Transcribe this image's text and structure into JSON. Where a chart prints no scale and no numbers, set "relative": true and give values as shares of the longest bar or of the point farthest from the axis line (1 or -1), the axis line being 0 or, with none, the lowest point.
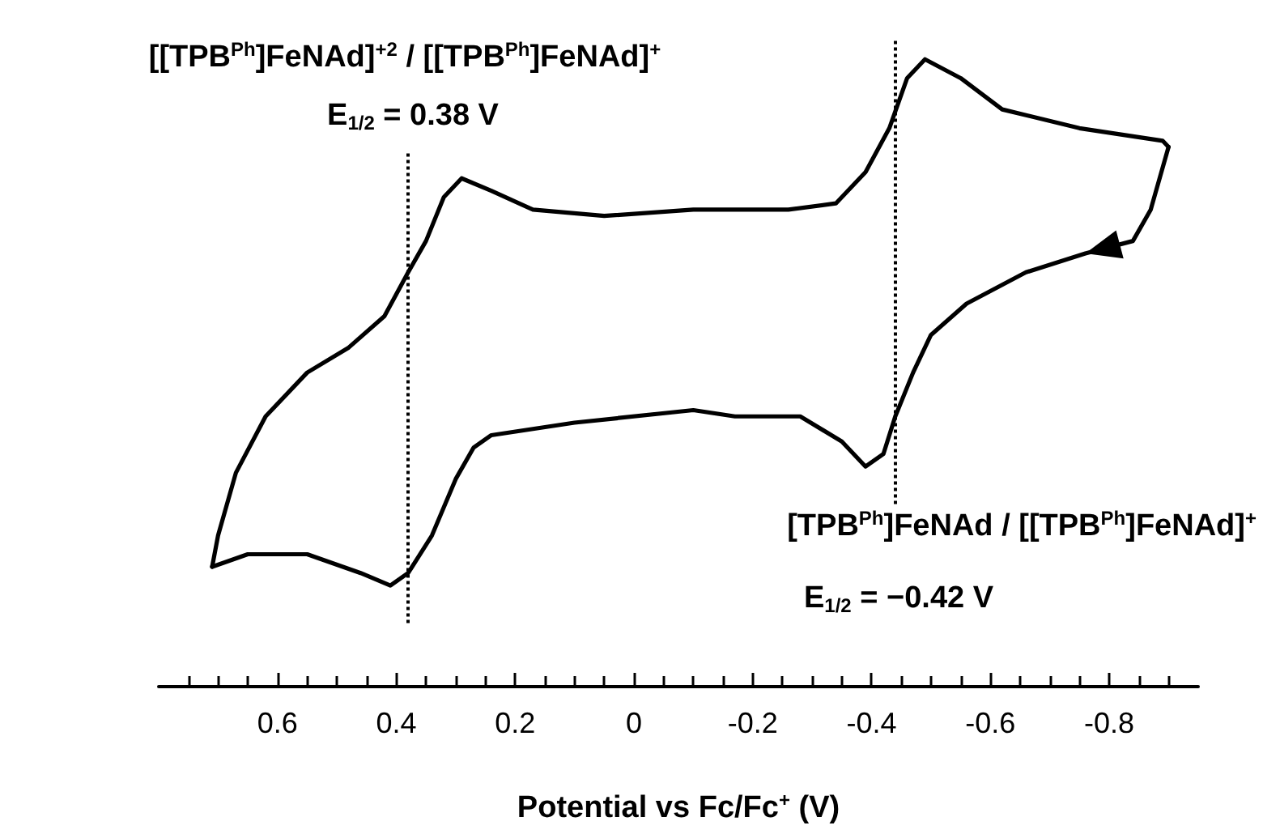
{
  "chart_data": {
    "type": "line",
    "relative": true,
    "marker": "none",
    "line_style": "solid",
    "xlabel": "Potential vs Fc/Fc$^{+}$ (V)",
    "annotations": [
      "[[TPB$^{Ph}$]FeNAd]$^{+2}$ / [[TPB$^{Ph}$]FeNAd]$^{+}$",
      "E$_{1/2}$ = 0.38 V",
      "[TPB$^{Ph}$]FeNAd / [[TPB$^{Ph}$]FeNAd]$^{+}$",
      "E$_{1/2}$ = −0.42 V"
    ],
    "xlim": [
      0.8,
      -0.95
    ],
    "xticks": [
      {
        "value": 0.75,
        "label": null
      },
      {
        "value": 0.7,
        "label": null
      },
      {
        "value": 0.65,
        "label": null
      },
      0.6,
      {
        "value": 0.55,
        "label": null
      },
      {
        "value": 0.5,
        "label": null
      },
      {
        "value": 0.45,
        "label": null
      },
      0.4,
      {
        "value": 0.35,
        "label": null
      },
      {
        "value": 0.3,
        "label": null
      },
      {
        "value": 0.25,
        "label": null
      },
      0.2,
      {
        "value": 0.15,
        "label": null
      },
      {
        "value": 0.1,
        "label": null
      },
      {
        "value": 0.05,
        "label": null
      },
      0,
      {
        "value": -0.05,
        "label": null
      },
      {
        "value": -0.1,
        "label": null
      },
      {
        "value": -0.15,
        "label": null
      },
      -0.2,
      {
        "value": -0.25,
        "label": null
      },
      {
        "value": -0.3,
        "label": null
      },
      {
        "value": -0.35,
        "label": null
      },
      -0.4,
      {
        "value": -0.45,
        "label": null
      },
      {
        "value": -0.5,
        "label": null
      },
      {
        "value": -0.55,
        "label": null
      },
      -0.6,
      {
        "value": -0.65,
        "label": null
      },
      {
        "value": -0.7,
        "label": null
      },
      {
        "value": -0.75,
        "label": null
      },
      -0.8,
      {
        "value": -0.85,
        "label": null
      },
      {
        "value": -0.9,
        "label": null
      }
    ],
    "ref_lines": [
      {
        "axis": "x",
        "value": 0.38,
        "color": "#000000",
        "line_style": "dotted"
      },
      {
        "axis": "x",
        "value": -0.44,
        "color": "#000000",
        "line_style": "dotted"
      }
    ],
    "series": [
      {
        "color": "#000000",
        "x": [
          0.71,
          0.7,
          0.67,
          0.62,
          0.55,
          0.48,
          0.42,
          0.38,
          0.35,
          0.32,
          0.29,
          0.24,
          0.17,
          0.05,
          -0.1,
          -0.26,
          -0.34,
          -0.39,
          -0.43,
          -0.46,
          -0.49,
          -0.55,
          -0.62,
          -0.75,
          -0.89,
          -0.9
        ],
        "values": [
          0.19,
          0.24,
          0.34,
          0.43,
          0.5,
          0.54,
          0.59,
          0.66,
          0.71,
          0.78,
          0.81,
          0.79,
          0.76,
          0.75,
          0.76,
          0.76,
          0.77,
          0.82,
          0.89,
          0.97,
          1.0,
          0.97,
          0.92,
          0.89,
          0.87,
          0.86
        ]
      },
      {
        "color": "#000000",
        "x": [
          -0.9,
          -0.87,
          -0.84,
          -0.76,
          -0.66,
          -0.56,
          -0.5,
          -0.47,
          -0.44,
          -0.42,
          -0.39,
          -0.35,
          -0.28,
          -0.17,
          -0.1,
          0.1,
          0.24,
          0.27,
          0.3,
          0.34,
          0.38,
          0.41,
          0.46,
          0.55,
          0.65,
          0.71
        ],
        "values": [
          0.86,
          0.76,
          0.71,
          0.69,
          0.66,
          0.61,
          0.56,
          0.5,
          0.43,
          0.37,
          0.35,
          0.39,
          0.43,
          0.43,
          0.44,
          0.42,
          0.4,
          0.38,
          0.33,
          0.24,
          0.18,
          0.16,
          0.18,
          0.21,
          0.21,
          0.19
        ]
      }
    ]
  }
}
